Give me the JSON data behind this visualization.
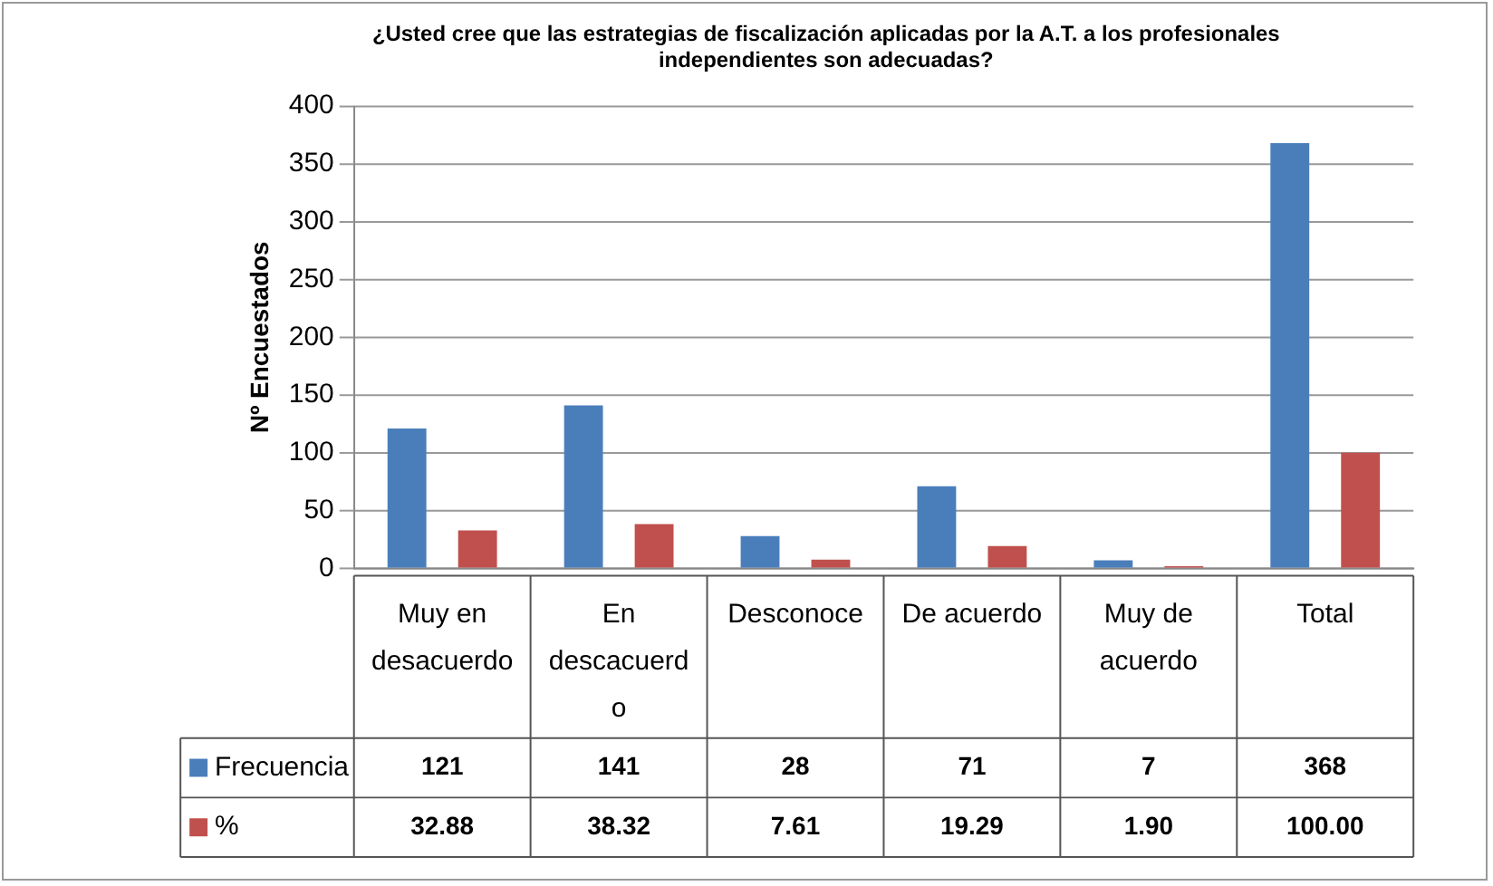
{
  "chart_data": {
    "type": "bar",
    "title": "¿Usted cree que las estrategias de fiscalización aplicadas por la A.T. a los profesionales independientes son adecuadas?",
    "ylabel": "Nº Encuestados",
    "categories": [
      "Muy en desacuerdo",
      "En descacuerdo",
      "Desconoce",
      "De acuerdo",
      "Muy de acuerdo",
      "Total"
    ],
    "series": [
      {
        "name": "Frecuencia",
        "color": "#4a7ebb",
        "values": [
          121,
          141,
          28,
          71,
          7,
          368
        ],
        "value_labels": [
          "121",
          "141",
          "28",
          "71",
          "7",
          "368"
        ]
      },
      {
        "name": "%",
        "color": "#c0504d",
        "values": [
          32.88,
          38.32,
          7.61,
          19.29,
          1.9,
          100
        ],
        "value_labels": [
          "32.88",
          "38.32",
          "7.61",
          "19.29",
          "1.90",
          "100.00"
        ]
      }
    ],
    "ylim": [
      0,
      400
    ],
    "yticks": [
      0,
      50,
      100,
      150,
      200,
      250,
      300,
      350,
      400
    ],
    "grid": "y",
    "legend": "bottom"
  }
}
